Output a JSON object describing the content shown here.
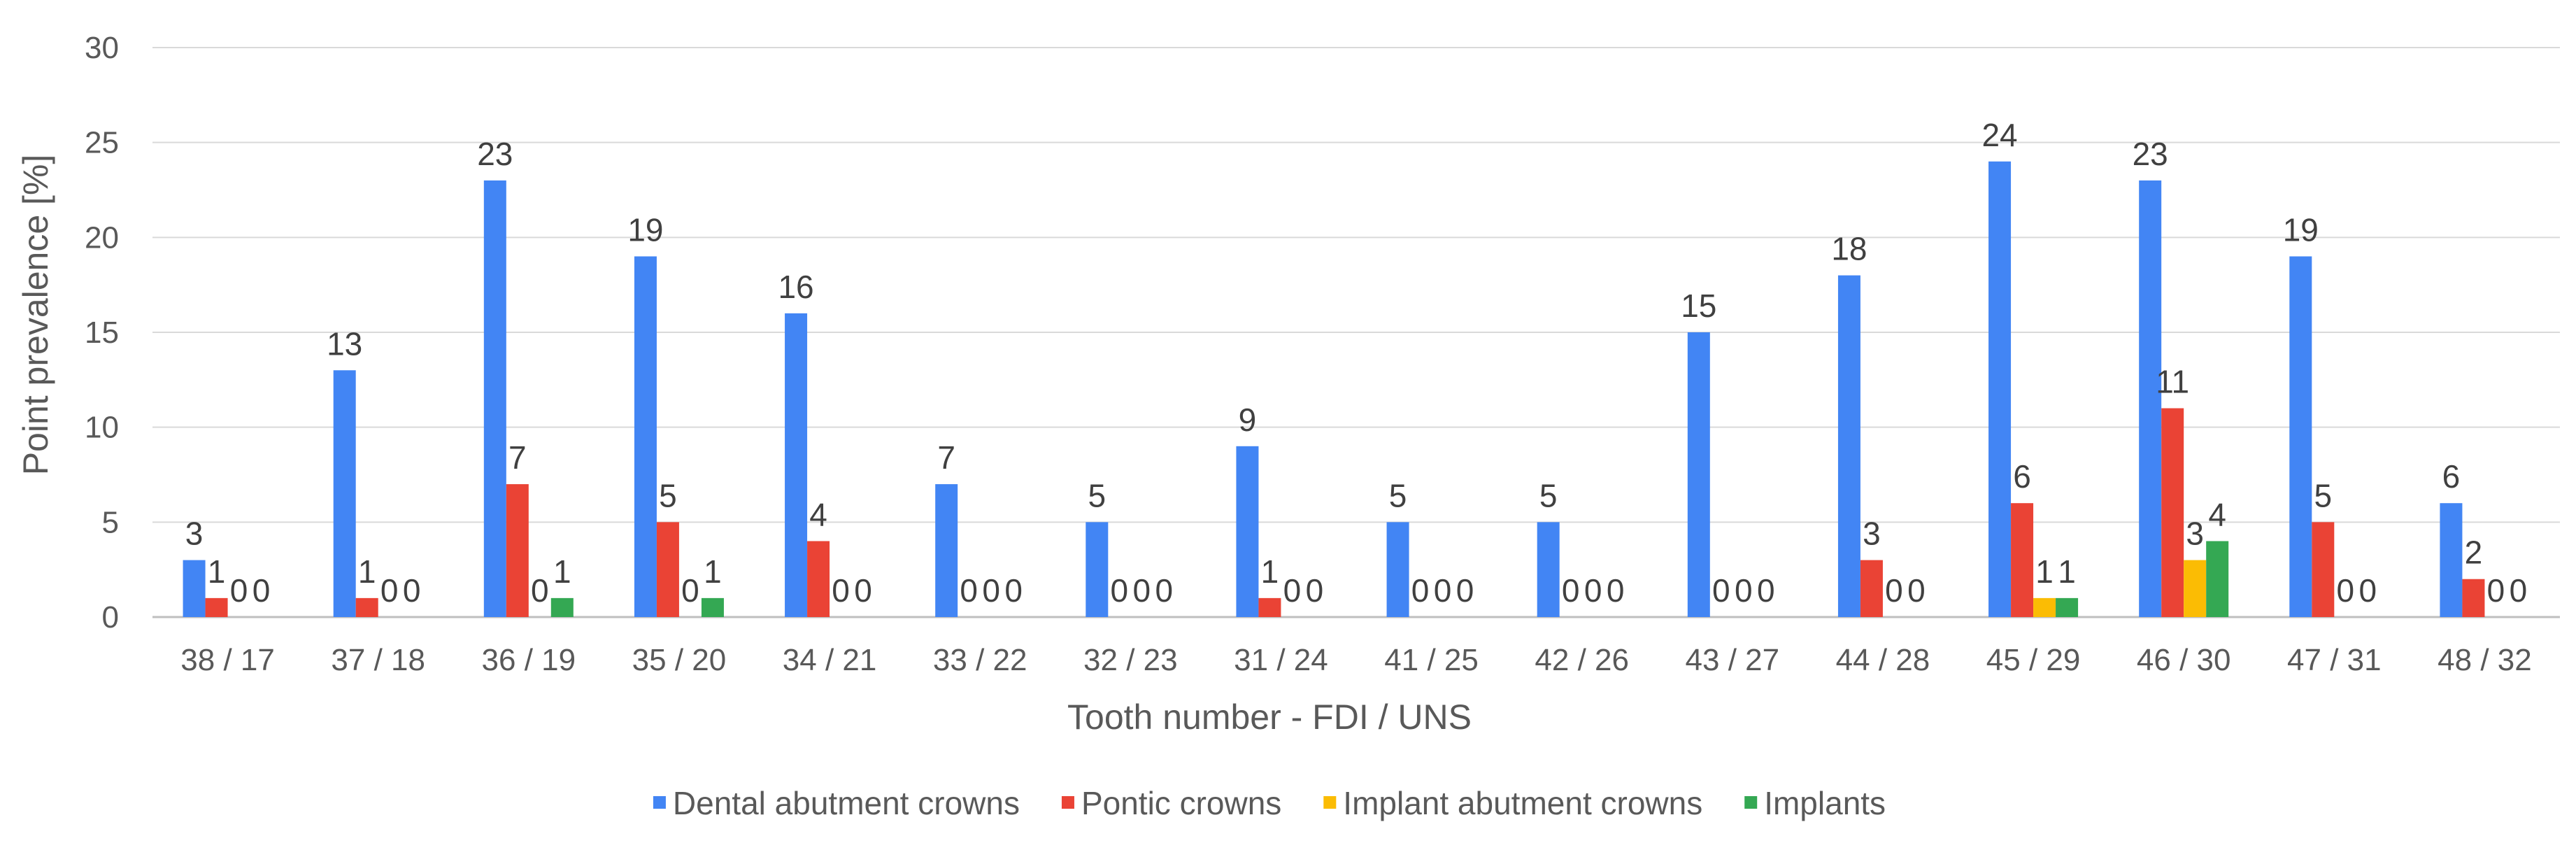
{
  "chart_data": {
    "type": "bar",
    "title": "",
    "xlabel": "Tooth number - FDI / UNS",
    "ylabel": "Point prevalence [%]",
    "ylim": [
      0,
      30
    ],
    "yticks": [
      0,
      5,
      10,
      15,
      20,
      25,
      30
    ],
    "grid": true,
    "legend_position": "bottom",
    "categories": [
      "38 / 17",
      "37 / 18",
      "36 / 19",
      "35 / 20",
      "34 / 21",
      "33 / 22",
      "32 / 23",
      "31 / 24",
      "41 / 25",
      "42 / 26",
      "43 / 27",
      "44 / 28",
      "45 / 29",
      "46 / 30",
      "47 / 31",
      "48 / 32"
    ],
    "series": [
      {
        "name": "Dental abutment crowns",
        "color": "#4285F4",
        "values": [
          3,
          13,
          23,
          19,
          16,
          7,
          5,
          9,
          5,
          5,
          15,
          18,
          24,
          23,
          19,
          6
        ]
      },
      {
        "name": "Pontic crowns",
        "color": "#EA4335",
        "values": [
          1,
          1,
          7,
          5,
          4,
          0,
          0,
          1,
          0,
          0,
          0,
          3,
          6,
          11,
          5,
          2
        ]
      },
      {
        "name": "Implant abutment crowns",
        "color": "#FBBC04",
        "values": [
          0,
          0,
          0,
          0,
          0,
          0,
          0,
          0,
          0,
          0,
          0,
          0,
          1,
          3,
          0,
          0
        ]
      },
      {
        "name": "Implants",
        "color": "#34A853",
        "values": [
          0,
          0,
          1,
          1,
          0,
          0,
          0,
          0,
          0,
          0,
          0,
          0,
          1,
          4,
          0,
          0
        ]
      }
    ]
  }
}
